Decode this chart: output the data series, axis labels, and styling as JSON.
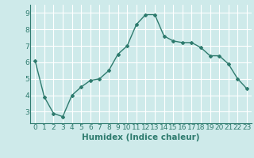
{
  "x": [
    0,
    1,
    2,
    3,
    4,
    5,
    6,
    7,
    8,
    9,
    10,
    11,
    12,
    13,
    14,
    15,
    16,
    17,
    18,
    19,
    20,
    21,
    22,
    23
  ],
  "y": [
    6.1,
    3.9,
    2.9,
    2.7,
    4.0,
    4.5,
    4.9,
    5.0,
    5.5,
    6.5,
    7.0,
    8.3,
    8.9,
    8.9,
    7.6,
    7.3,
    7.2,
    7.2,
    6.9,
    6.4,
    6.4,
    5.9,
    5.0,
    4.4
  ],
  "line_color": "#2e7b6e",
  "marker": "D",
  "marker_size": 2.0,
  "line_width": 1.0,
  "xlabel": "Humidex (Indice chaleur)",
  "xlim": [
    -0.5,
    23.5
  ],
  "ylim": [
    2.3,
    9.5
  ],
  "yticks": [
    3,
    4,
    5,
    6,
    7,
    8,
    9
  ],
  "xtick_labels": [
    "0",
    "1",
    "2",
    "3",
    "4",
    "5",
    "6",
    "7",
    "8",
    "9",
    "10",
    "11",
    "12",
    "13",
    "14",
    "15",
    "16",
    "17",
    "18",
    "19",
    "20",
    "21",
    "22",
    "23"
  ],
  "bg_color": "#ceeaea",
  "grid_color": "#ffffff",
  "tick_color": "#2e7b6e",
  "xlabel_fontsize": 7.5,
  "tick_fontsize": 6.5
}
